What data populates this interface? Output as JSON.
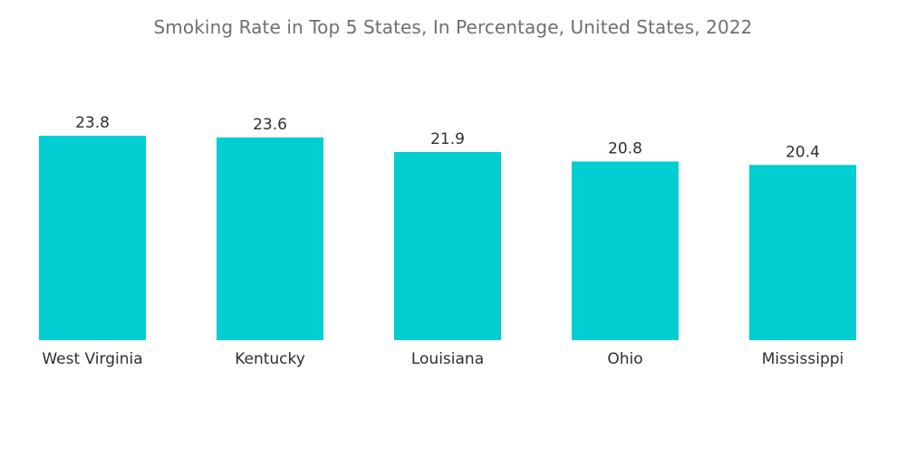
{
  "chart_data": {
    "type": "bar",
    "title": "Smoking Rate in Top 5 States, In Percentage, United States, 2022",
    "categories": [
      "West Virginia",
      "Kentucky",
      "Louisiana",
      "Ohio",
      "Mississippi"
    ],
    "values": [
      23.8,
      23.6,
      21.9,
      20.8,
      20.4
    ],
    "value_labels": [
      "23.8",
      "23.6",
      "21.9",
      "20.8",
      "20.4"
    ],
    "xlabel": "",
    "ylabel": "",
    "ylim": [
      0,
      23.8
    ],
    "grid": false,
    "bar_color": "#00ced1"
  }
}
